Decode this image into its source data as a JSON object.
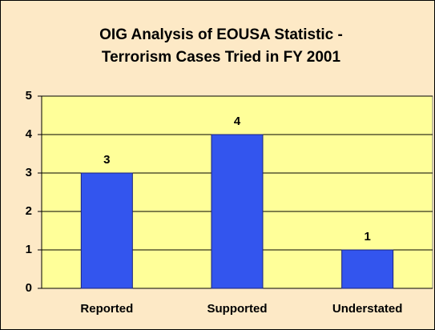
{
  "chart_data": {
    "type": "bar",
    "title": [
      "OIG Analysis of EOUSA Statistic -",
      "Terrorism Cases Tried in FY 2001"
    ],
    "categories": [
      "Reported",
      "Supported",
      "Understated"
    ],
    "values": [
      3,
      4,
      1
    ],
    "color": "#3355ee",
    "ylim": [
      0,
      5
    ],
    "yticks": [
      0,
      1,
      2,
      3,
      4,
      5
    ],
    "grid": true
  }
}
